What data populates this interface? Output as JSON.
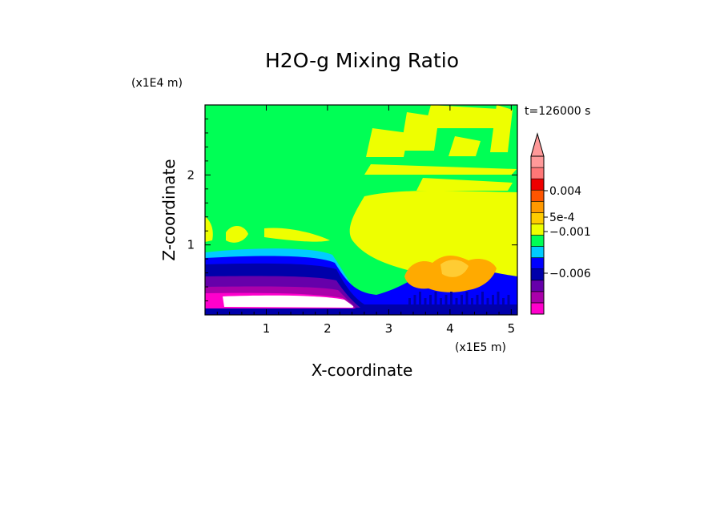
{
  "chart_data": {
    "type": "heatmap",
    "title": "H2O-g Mixing Ratio",
    "time_label": "t=126000 s",
    "xlabel": "X-coordinate",
    "ylabel": "Z-coordinate",
    "x_unit": "(x1E5 m)",
    "y_unit": "(x1E4 m)",
    "xlim": [
      0.0,
      5.1
    ],
    "ylim": [
      0.0,
      3.0
    ],
    "x_ticks": [
      1,
      2,
      3,
      4,
      5
    ],
    "y_ticks": [
      1,
      2
    ],
    "x_tick_labels": [
      "1",
      "2",
      "3",
      "4",
      "5"
    ],
    "y_tick_labels": [
      "1",
      "2"
    ],
    "colorbar": {
      "extend": "max",
      "tick_labels": [
        "0.004",
        "5e-4",
        "−0.001",
        "−0.006"
      ],
      "colors": [
        "#ff00cc",
        "#aa00aa",
        "#6600aa",
        "#0000aa",
        "#0000ff",
        "#00ccff",
        "#00ff55",
        "#eeff00",
        "#ffcc00",
        "#ff9900",
        "#ff5500",
        "#ee0000",
        "#ff7777",
        "#ff9999"
      ]
    },
    "fields": {
      "background": "#00ff55",
      "green": "#00ff55",
      "yellow": "#eeff00",
      "cyan": "#00ccff",
      "blue": "#0000ff",
      "navy": "#0000aa",
      "purple": "#6600aa",
      "violet": "#aa00aa",
      "magenta": "#ff00cc",
      "white": "#ffffff",
      "orange": "#ffaa00",
      "light_orange": "#ffcc33"
    }
  }
}
